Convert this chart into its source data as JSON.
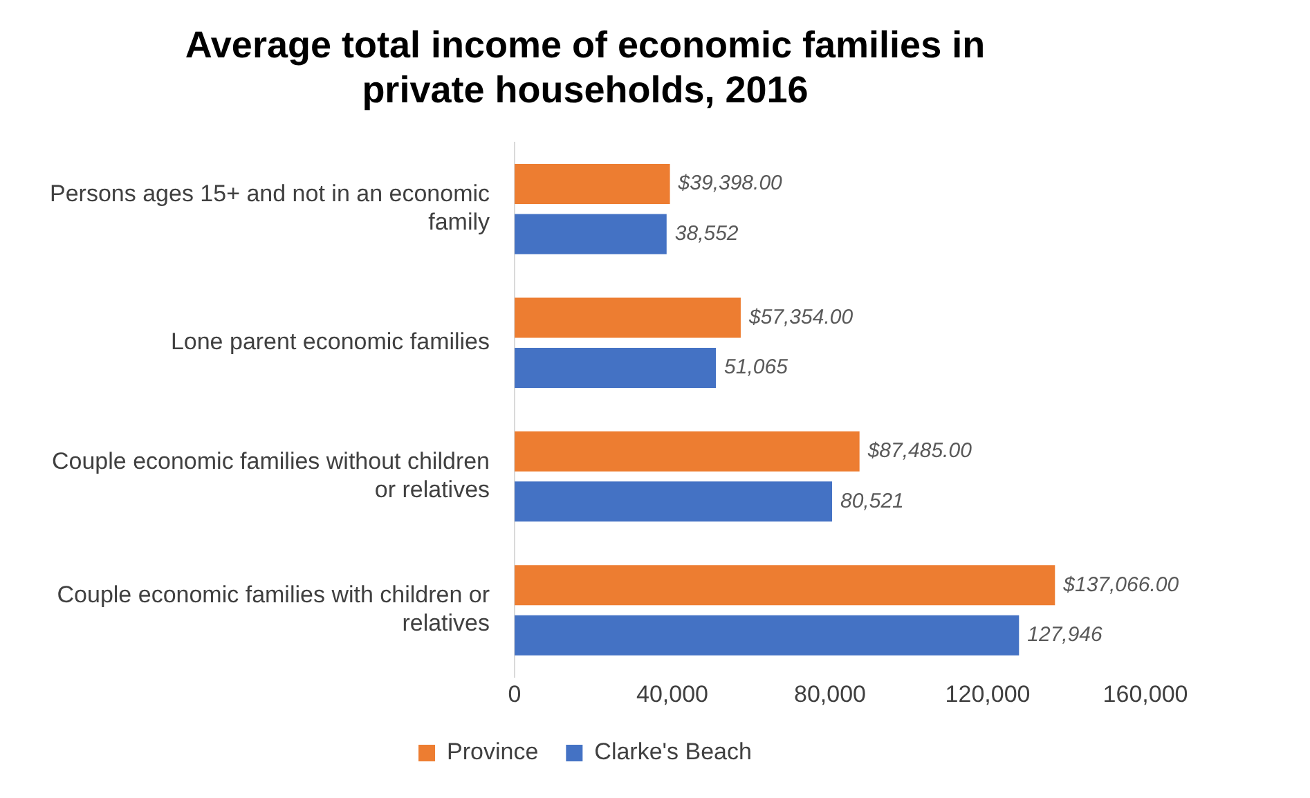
{
  "chart_data": {
    "type": "bar",
    "orientation": "horizontal",
    "title": "Average total income of economic families in private households, 2016",
    "categories": [
      "Persons ages 15+ and not in an economic family",
      "Lone parent economic families",
      "Couple economic families without children or relatives",
      "Couple economic families with children or relatives"
    ],
    "series": [
      {
        "name": "Province",
        "color": "#ed7d31",
        "values": [
          39398,
          57354,
          87485,
          137066
        ],
        "value_labels": [
          "$39,398.00",
          "$57,354.00",
          "$87,485.00",
          "$137,066.00"
        ]
      },
      {
        "name": "Clarke's Beach",
        "color": "#4472c4",
        "values": [
          38552,
          51065,
          80521,
          127946
        ],
        "value_labels": [
          "38,552",
          "51,065",
          "80,521",
          "127,946"
        ]
      }
    ],
    "xlim": [
      0,
      160000
    ],
    "xticks": [
      {
        "value": 0,
        "label": "0"
      },
      {
        "value": 40000,
        "label": "40,000"
      },
      {
        "value": 80000,
        "label": "80,000"
      },
      {
        "value": 120000,
        "label": "120,000"
      },
      {
        "value": 160000,
        "label": "160,000"
      }
    ],
    "legend": "bottom",
    "grid": false
  }
}
